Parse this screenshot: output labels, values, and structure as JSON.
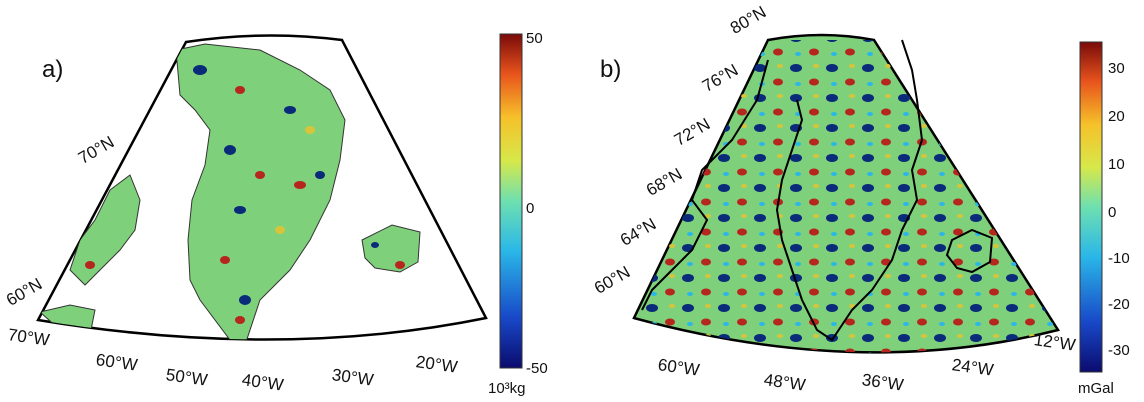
{
  "panels": [
    {
      "label": "a)",
      "lat_labels": [
        "70°N",
        "60°N"
      ],
      "lon_labels": [
        "70°W",
        "60°W",
        "50°W",
        "40°W",
        "30°W",
        "20°W"
      ],
      "colorbar": {
        "ticks": [
          "50",
          "0",
          "-50"
        ],
        "unit": "10³kg",
        "range": [
          -50,
          50
        ]
      }
    },
    {
      "label": "b)",
      "lat_labels": [
        "80°N",
        "76°N",
        "72°N",
        "68°N",
        "64°N",
        "60°N"
      ],
      "lon_labels": [
        "60°W",
        "48°W",
        "36°W",
        "24°W",
        "12°W"
      ],
      "colorbar": {
        "ticks": [
          "30",
          "20",
          "10",
          "0",
          "-10",
          "-20",
          "-30"
        ],
        "unit": "mGal",
        "range": [
          -35,
          35
        ]
      }
    }
  ],
  "colors": {
    "map_base": "#7fd07a",
    "anomaly_blue": "#0a2a7a",
    "anomaly_red": "#b5261e",
    "coastline": "#000000",
    "colorbar_stops": [
      "#0b0b6e",
      "#1848c8",
      "#2ab7e8",
      "#6ee0b0",
      "#d6e84a",
      "#f6c12a",
      "#e8541c",
      "#7a0a0a"
    ]
  }
}
